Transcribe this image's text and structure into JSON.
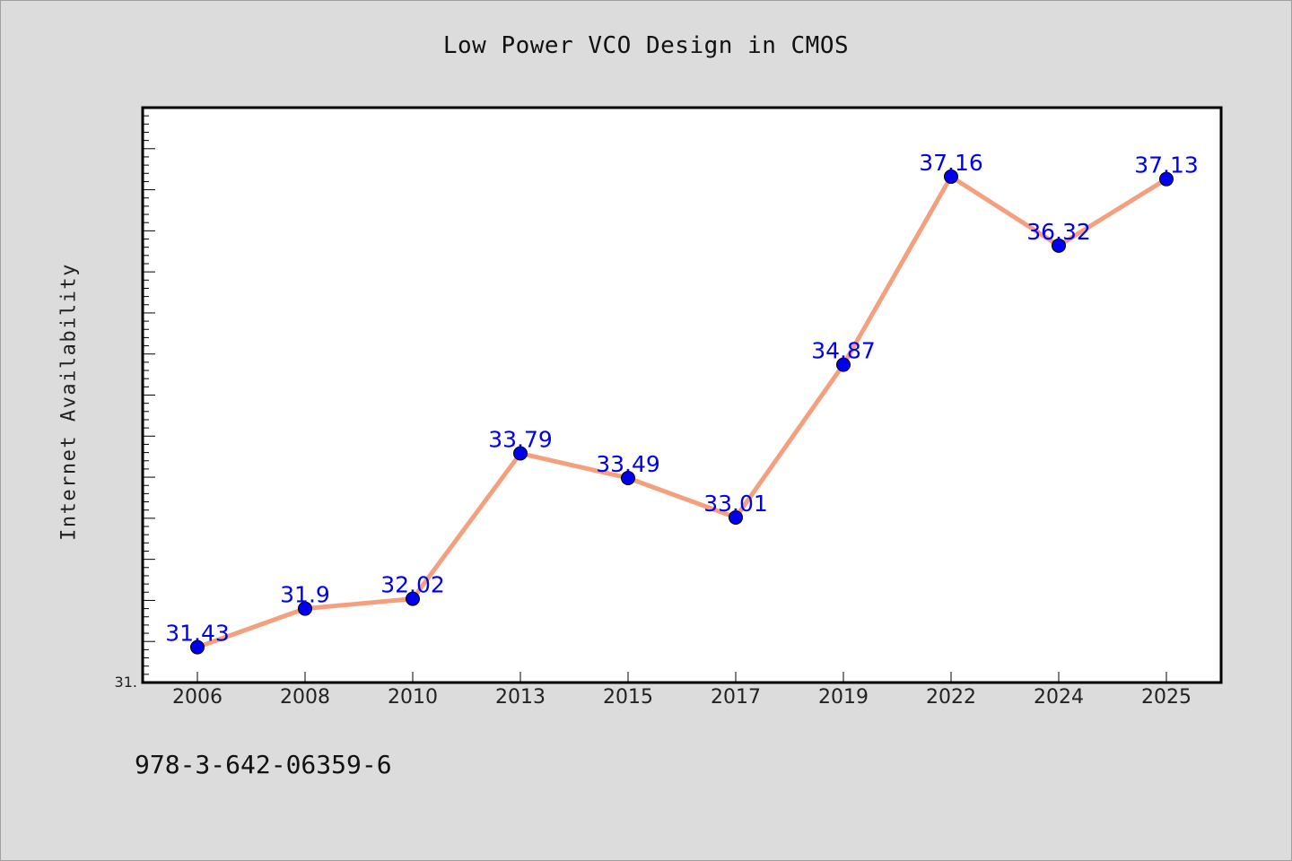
{
  "chart_data": {
    "type": "line",
    "title": "Low Power VCO Design in CMOS",
    "xlabel": "",
    "ylabel": "Internet Availability",
    "categories": [
      "2006",
      "2008",
      "2010",
      "2013",
      "2015",
      "2017",
      "2019",
      "2022",
      "2024",
      "2025"
    ],
    "values": [
      31.43,
      31.9,
      32.02,
      33.79,
      33.49,
      33.01,
      34.87,
      37.16,
      36.32,
      37.13
    ],
    "data_labels": [
      "31.43",
      "31.9",
      "32.02",
      "33.79",
      "33.49",
      "33.01",
      "34.87",
      "37.16",
      "36.32",
      "37.13"
    ],
    "ylim": [
      31,
      38
    ],
    "y_tick_label_shown": "31.",
    "grid": false,
    "legend": "none",
    "colors": {
      "line": "#f4a07e",
      "marker": "#0000ee",
      "marker_edge": "#000000",
      "data_label": "#0000ee",
      "plot_bg": "#ffffff",
      "page_bg": "#dcdcdc"
    }
  },
  "footer": {
    "isbn": "978-3-642-06359-6"
  }
}
